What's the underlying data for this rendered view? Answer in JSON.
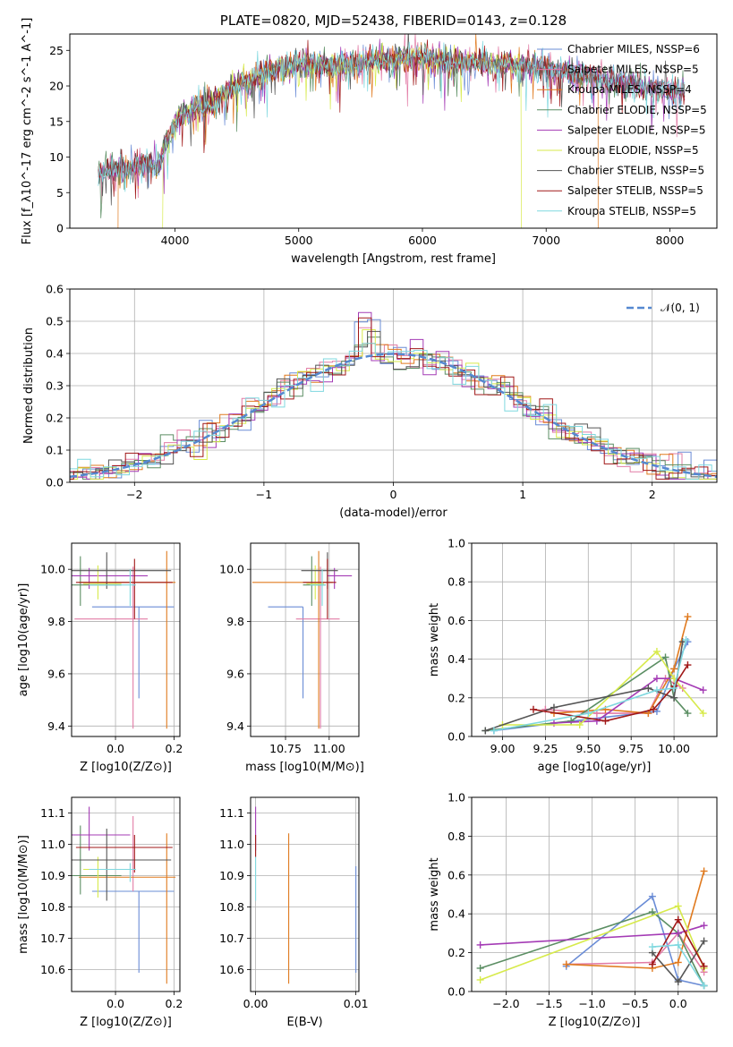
{
  "figure": {
    "title": "PLATE=0820, MJD=52438, FIBERID=0143, z=0.128"
  },
  "chart_data": [
    {
      "id": "spectrum",
      "type": "line",
      "title": "PLATE=0820, MJD=52438, FIBERID=0143, z=0.128",
      "xlabel": "wavelength [Angstrom, rest frame]",
      "ylabel": "Flux [f_λ10^-17 erg cm^-2 s^-1 A^-1]",
      "xlim": [
        3150,
        8380
      ],
      "ylim": [
        0,
        27.3
      ],
      "xticks": [
        4000,
        5000,
        6000,
        7000,
        8000
      ],
      "yticks": [
        0,
        5,
        10,
        15,
        20,
        25
      ],
      "grid": false,
      "legend_position": "right",
      "continuum": {
        "x": [
          3380,
          3460,
          3540,
          3620,
          3700,
          3780,
          3860,
          3940,
          4020,
          4100,
          4200,
          4300,
          4400,
          4500,
          4600,
          4700,
          4800,
          4900,
          5000,
          5100,
          5200,
          5300,
          5400,
          5500,
          5600,
          5700,
          5800,
          5900,
          6000,
          6100,
          6200,
          6300,
          6400,
          6500,
          6600,
          6700,
          6800,
          6900,
          7000,
          7100,
          7200,
          7300,
          7400,
          7500,
          7600,
          7700,
          7800,
          7900,
          8000,
          8100
        ],
        "y": [
          7.8,
          8.3,
          8.6,
          8.4,
          8.9,
          9.0,
          8.5,
          12.5,
          15.5,
          16.2,
          17.0,
          17.3,
          19.0,
          20.2,
          20.5,
          21.5,
          22.3,
          22.7,
          23.1,
          23.0,
          22.8,
          22.8,
          23.1,
          23.3,
          23.4,
          23.6,
          23.8,
          23.9,
          23.9,
          23.6,
          23.5,
          23.4,
          23.3,
          23.2,
          23.1,
          23.0,
          22.9,
          22.8,
          22.6,
          22.1,
          21.8,
          21.5,
          21.3,
          20.8,
          20.6,
          20.2,
          19.8,
          19.7,
          19.3,
          19.0
        ]
      },
      "series": [
        {
          "name": "Chabrier MILES, N_SSP=6",
          "color": "#6a8cd6"
        },
        {
          "name": "Salpeter MILES, N_SSP=5",
          "color": "#e27ca6"
        },
        {
          "name": "Kroupa MILES, N_SSP=4",
          "color": "#e07a1f"
        },
        {
          "name": "Chabrier ELODIE, N_SSP=5",
          "color": "#5b8e63"
        },
        {
          "name": "Salpeter ELODIE, N_SSP=5",
          "color": "#a43bb5"
        },
        {
          "name": "Kroupa ELODIE, N_SSP=5",
          "color": "#d7ea4b"
        },
        {
          "name": "Chabrier STELIB, N_SSP=5",
          "color": "#555555"
        },
        {
          "name": "Salpeter STELIB, N_SSP=5",
          "color": "#a01818"
        },
        {
          "name": "Kroupa STELIB, N_SSP=5",
          "color": "#7fd8df"
        }
      ],
      "range_cutoffs": [
        {
          "series": "Kroupa MILES, N_SSP=4",
          "blue_end": 3540,
          "red_end": 7420
        },
        {
          "series": "Kroupa ELODIE, N_SSP=5",
          "blue_end": 3900,
          "red_end": 6800
        }
      ]
    },
    {
      "id": "residuals",
      "type": "line",
      "subtype": "step-histogram",
      "xlabel": "(data-model)/error",
      "ylabel": "Normed distribution",
      "xlim": [
        -2.5,
        2.5
      ],
      "ylim": [
        0,
        0.6
      ],
      "xticks": [
        -2,
        -1,
        0,
        1,
        2
      ],
      "yticks": [
        0.0,
        0.1,
        0.2,
        0.3,
        0.4,
        0.5,
        0.6
      ],
      "grid": true,
      "legend_position": "top-right",
      "normal_curve": {
        "name": "𝒩(0, 1)",
        "color": "#5588d0"
      },
      "bin_width": 0.1
    },
    {
      "id": "age-vs-Z",
      "type": "scatter",
      "subtype": "error-crosses",
      "xlabel": "Z [log10(Z/Z⊙)]",
      "ylabel": "age  [log10(age/yr)]",
      "xlim": [
        -0.15,
        0.22
      ],
      "ylim": [
        9.36,
        10.1
      ],
      "xticks": [
        0.0,
        0.2
      ],
      "yticks": [
        9.4,
        9.6,
        9.8,
        10.0
      ],
      "grid": true,
      "points": [
        {
          "x": 0.08,
          "y": 9.856,
          "xerr": [
            0.16,
            0.12
          ],
          "yerr": [
            0.35,
            0.0
          ],
          "color": "#6a8cd6"
        },
        {
          "x": 0.06,
          "y": 9.81,
          "xerr": [
            0.2,
            0.05
          ],
          "yerr": [
            0.42,
            0.2
          ],
          "color": "#e27ca6"
        },
        {
          "x": 0.175,
          "y": 9.95,
          "xerr": [
            0.3,
            0.03
          ],
          "yerr": [
            0.56,
            0.12
          ],
          "color": "#e07a1f"
        },
        {
          "x": -0.12,
          "y": 9.94,
          "xerr": [
            0.03,
            0.14
          ],
          "yerr": [
            0.08,
            0.11
          ],
          "color": "#5b8e63"
        },
        {
          "x": -0.09,
          "y": 9.975,
          "xerr": [
            0.06,
            0.2
          ],
          "yerr": [
            0.05,
            0.03
          ],
          "color": "#a43bb5"
        },
        {
          "x": -0.06,
          "y": 9.945,
          "xerr": [
            0.05,
            0.08
          ],
          "yerr": [
            0.06,
            0.07
          ],
          "color": "#d7ea4b"
        },
        {
          "x": -0.03,
          "y": 9.995,
          "xerr": [
            0.12,
            0.22
          ],
          "yerr": [
            0.07,
            0.07
          ],
          "color": "#555555"
        },
        {
          "x": 0.065,
          "y": 9.95,
          "xerr": [
            0.2,
            0.13
          ],
          "yerr": [
            0.14,
            0.09
          ],
          "color": "#a01818"
        },
        {
          "x": 0.05,
          "y": 9.94,
          "xerr": [
            0.14,
            0.02
          ],
          "yerr": [
            0.08,
            0.06
          ],
          "color": "#7fd8df"
        }
      ]
    },
    {
      "id": "age-vs-mass",
      "type": "scatter",
      "subtype": "error-crosses",
      "xlabel": "mass [log10(M/M⊙)]",
      "ylabel": "",
      "xlim": [
        10.55,
        11.17
      ],
      "ylim": [
        9.36,
        10.1
      ],
      "xticks": [
        10.75,
        11.0
      ],
      "yticks": [
        9.4,
        9.6,
        9.8,
        10.0
      ],
      "tick_labels_x": [
        "10.75",
        "11.00"
      ],
      "grid": true,
      "points": [
        {
          "x": 10.85,
          "y": 9.856,
          "xerr": [
            0.2,
            0.0
          ],
          "yerr": [
            0.35,
            0.0
          ],
          "color": "#6a8cd6"
        },
        {
          "x": 10.95,
          "y": 9.81,
          "xerr": [
            0.14,
            0.11
          ],
          "yerr": [
            0.42,
            0.2
          ],
          "color": "#e27ca6"
        },
        {
          "x": 10.94,
          "y": 9.95,
          "xerr": [
            0.38,
            0.08
          ],
          "yerr": [
            0.56,
            0.12
          ],
          "color": "#e07a1f"
        },
        {
          "x": 10.9,
          "y": 9.94,
          "xerr": [
            0.05,
            0.08
          ],
          "yerr": [
            0.08,
            0.11
          ],
          "color": "#5b8e63"
        },
        {
          "x": 11.03,
          "y": 9.975,
          "xerr": [
            0.04,
            0.1
          ],
          "yerr": [
            0.05,
            0.03
          ],
          "color": "#a43bb5"
        },
        {
          "x": 10.92,
          "y": 9.945,
          "xerr": [
            0.05,
            0.05
          ],
          "yerr": [
            0.06,
            0.07
          ],
          "color": "#d7ea4b"
        },
        {
          "x": 10.99,
          "y": 9.995,
          "xerr": [
            0.15,
            0.06
          ],
          "yerr": [
            0.07,
            0.07
          ],
          "color": "#555555"
        },
        {
          "x": 10.99,
          "y": 9.95,
          "xerr": [
            0.14,
            0.05
          ],
          "yerr": [
            0.14,
            0.09
          ],
          "color": "#a01818"
        },
        {
          "x": 10.96,
          "y": 9.94,
          "xerr": [
            0.07,
            0.02
          ],
          "yerr": [
            0.08,
            0.06
          ],
          "color": "#7fd8df"
        }
      ]
    },
    {
      "id": "weight-vs-age",
      "type": "line",
      "xlabel": "age  [log10(age/yr)]",
      "ylabel": "mass weight",
      "xlim": [
        8.82,
        10.25
      ],
      "ylim": [
        0,
        1
      ],
      "xticks": [
        9.0,
        9.25,
        9.5,
        9.75,
        10.0
      ],
      "tick_labels_x": [
        "9.00",
        "9.25",
        "9.50",
        "9.75",
        "10.00"
      ],
      "yticks": [
        0.0,
        0.2,
        0.4,
        0.6,
        0.8,
        1.0
      ],
      "grid": true,
      "series": [
        {
          "color": "#6a8cd6",
          "x": [
            8.95,
            9.6,
            9.9,
            10.0,
            10.08
          ],
          "y": [
            0.03,
            0.1,
            0.13,
            0.35,
            0.49
          ]
        },
        {
          "color": "#e27ca6",
          "x": [
            9.25,
            9.55,
            9.85,
            9.95,
            10.05
          ],
          "y": [
            0.14,
            0.12,
            0.12,
            0.3,
            0.25
          ]
        },
        {
          "color": "#e07a1f",
          "x": [
            9.3,
            9.6,
            9.85,
            10.0,
            10.08
          ],
          "y": [
            0.12,
            0.14,
            0.12,
            0.35,
            0.62
          ]
        },
        {
          "color": "#5b8e63",
          "x": [
            8.9,
            9.4,
            9.95,
            10.0,
            10.08
          ],
          "y": [
            0.03,
            0.08,
            0.41,
            0.2,
            0.12
          ]
        },
        {
          "color": "#a43bb5",
          "x": [
            9.3,
            9.55,
            9.9,
            10.0,
            10.17
          ],
          "y": [
            0.07,
            0.08,
            0.3,
            0.3,
            0.24
          ]
        },
        {
          "color": "#d7ea4b",
          "x": [
            9.0,
            9.45,
            9.9,
            10.0,
            10.17
          ],
          "y": [
            0.06,
            0.06,
            0.44,
            0.3,
            0.12
          ]
        },
        {
          "color": "#555555",
          "x": [
            8.9,
            9.3,
            9.85,
            10.0,
            10.05
          ],
          "y": [
            0.03,
            0.15,
            0.25,
            0.2,
            0.49
          ]
        },
        {
          "color": "#a01818",
          "x": [
            9.18,
            9.6,
            9.88,
            10.0,
            10.08
          ],
          "y": [
            0.14,
            0.08,
            0.14,
            0.26,
            0.37
          ]
        },
        {
          "color": "#7fd8df",
          "x": [
            8.95,
            9.5,
            9.9,
            10.0,
            10.07
          ],
          "y": [
            0.03,
            0.12,
            0.24,
            0.25,
            0.5
          ]
        }
      ]
    },
    {
      "id": "mass-vs-Z",
      "type": "scatter",
      "subtype": "error-crosses",
      "xlabel": "Z [log10(Z/Z⊙)]",
      "ylabel": "mass [log10(M/M⊙)]",
      "xlim": [
        -0.15,
        0.22
      ],
      "ylim": [
        10.53,
        11.15
      ],
      "xticks": [
        0.0,
        0.2
      ],
      "yticks": [
        10.6,
        10.7,
        10.8,
        10.9,
        11.0,
        11.1
      ],
      "grid": true,
      "points": [
        {
          "x": 0.08,
          "y": 10.85,
          "xerr": [
            0.16,
            0.12
          ],
          "yerr": [
            0.26,
            0.0
          ],
          "color": "#6a8cd6"
        },
        {
          "x": 0.06,
          "y": 10.95,
          "xerr": [
            0.2,
            0.05
          ],
          "yerr": [
            0.1,
            0.14
          ],
          "color": "#e27ca6"
        },
        {
          "x": 0.175,
          "y": 10.895,
          "xerr": [
            0.3,
            0.03
          ],
          "yerr": [
            0.34,
            0.14
          ],
          "color": "#e07a1f"
        },
        {
          "x": -0.12,
          "y": 10.9,
          "xerr": [
            0.03,
            0.14
          ],
          "yerr": [
            0.06,
            0.16
          ],
          "color": "#5b8e63"
        },
        {
          "x": -0.09,
          "y": 11.03,
          "xerr": [
            0.06,
            0.14
          ],
          "yerr": [
            0.05,
            0.09
          ],
          "color": "#a43bb5"
        },
        {
          "x": -0.06,
          "y": 10.92,
          "xerr": [
            0.05,
            0.08
          ],
          "yerr": [
            0.09,
            0.04
          ],
          "color": "#d7ea4b"
        },
        {
          "x": -0.03,
          "y": 10.95,
          "xerr": [
            0.12,
            0.22
          ],
          "yerr": [
            0.13,
            0.1
          ],
          "color": "#555555"
        },
        {
          "x": 0.065,
          "y": 10.99,
          "xerr": [
            0.2,
            0.13
          ],
          "yerr": [
            0.08,
            0.04
          ],
          "color": "#a01818"
        },
        {
          "x": 0.05,
          "y": 10.92,
          "xerr": [
            0.14,
            0.02
          ],
          "yerr": [
            0.04,
            0.02
          ],
          "color": "#7fd8df"
        }
      ]
    },
    {
      "id": "mass-vs-EBV",
      "type": "scatter",
      "subtype": "error-crosses",
      "xlabel": "E(B-V)",
      "ylabel": "",
      "xlim": [
        -0.0005,
        0.0103
      ],
      "ylim": [
        10.53,
        11.15
      ],
      "xticks": [
        0.0,
        0.01
      ],
      "tick_labels_x": [
        "0.00",
        "0.01"
      ],
      "yticks": [
        10.6,
        10.7,
        10.8,
        10.9,
        11.0,
        11.1
      ],
      "grid": true,
      "points": [
        {
          "x": 0.01,
          "y": 10.85,
          "yerr": [
            0.26,
            0.08
          ],
          "color": "#6a8cd6"
        },
        {
          "x": 0.0033,
          "y": 10.895,
          "yerr": [
            0.34,
            0.14
          ],
          "color": "#e07a1f"
        },
        {
          "x": 0.0,
          "y": 11.03,
          "yerr": [
            0.05,
            0.09
          ],
          "color": "#a43bb5"
        },
        {
          "x": 0.0,
          "y": 10.92,
          "yerr": [
            0.1,
            0.04
          ],
          "color": "#7fd8df"
        },
        {
          "x": 0.0,
          "y": 10.99,
          "yerr": [
            0.03,
            0.04
          ],
          "color": "#a01818"
        }
      ]
    },
    {
      "id": "weight-vs-Z",
      "type": "line",
      "xlabel": "Z [log10(Z/Z⊙)]",
      "ylabel": "mass weight",
      "xlim": [
        -2.4,
        0.45
      ],
      "ylim": [
        0,
        1
      ],
      "xticks": [
        -2.0,
        -1.5,
        -1.0,
        -0.5,
        0.0
      ],
      "yticks": [
        0.0,
        0.2,
        0.4,
        0.6,
        0.8,
        1.0
      ],
      "grid": true,
      "series": [
        {
          "color": "#6a8cd6",
          "x": [
            -1.3,
            -0.3,
            0.0,
            0.3
          ],
          "y": [
            0.13,
            0.49,
            0.06,
            0.03
          ]
        },
        {
          "color": "#e27ca6",
          "x": [
            -1.3,
            -0.3,
            0.0,
            0.3
          ],
          "y": [
            0.14,
            0.15,
            0.3,
            0.1
          ]
        },
        {
          "color": "#e07a1f",
          "x": [
            -1.3,
            -0.3,
            0.0,
            0.3
          ],
          "y": [
            0.14,
            0.12,
            0.15,
            0.62
          ]
        },
        {
          "color": "#5b8e63",
          "x": [
            -2.3,
            -0.3,
            0.0,
            0.3
          ],
          "y": [
            0.12,
            0.41,
            0.3,
            0.03
          ]
        },
        {
          "color": "#a43bb5",
          "x": [
            -2.3,
            0.0,
            0.3
          ],
          "y": [
            0.24,
            0.3,
            0.34
          ]
        },
        {
          "color": "#d7ea4b",
          "x": [
            -2.3,
            0.0,
            0.3
          ],
          "y": [
            0.06,
            0.44,
            0.12
          ]
        },
        {
          "color": "#555555",
          "x": [
            -0.3,
            0.0,
            0.3
          ],
          "y": [
            0.2,
            0.05,
            0.26
          ]
        },
        {
          "color": "#a01818",
          "x": [
            -0.3,
            0.0,
            0.3
          ],
          "y": [
            0.14,
            0.37,
            0.13
          ]
        },
        {
          "color": "#7fd8df",
          "x": [
            -0.3,
            0.0,
            0.3
          ],
          "y": [
            0.23,
            0.24,
            0.03
          ]
        }
      ]
    }
  ]
}
